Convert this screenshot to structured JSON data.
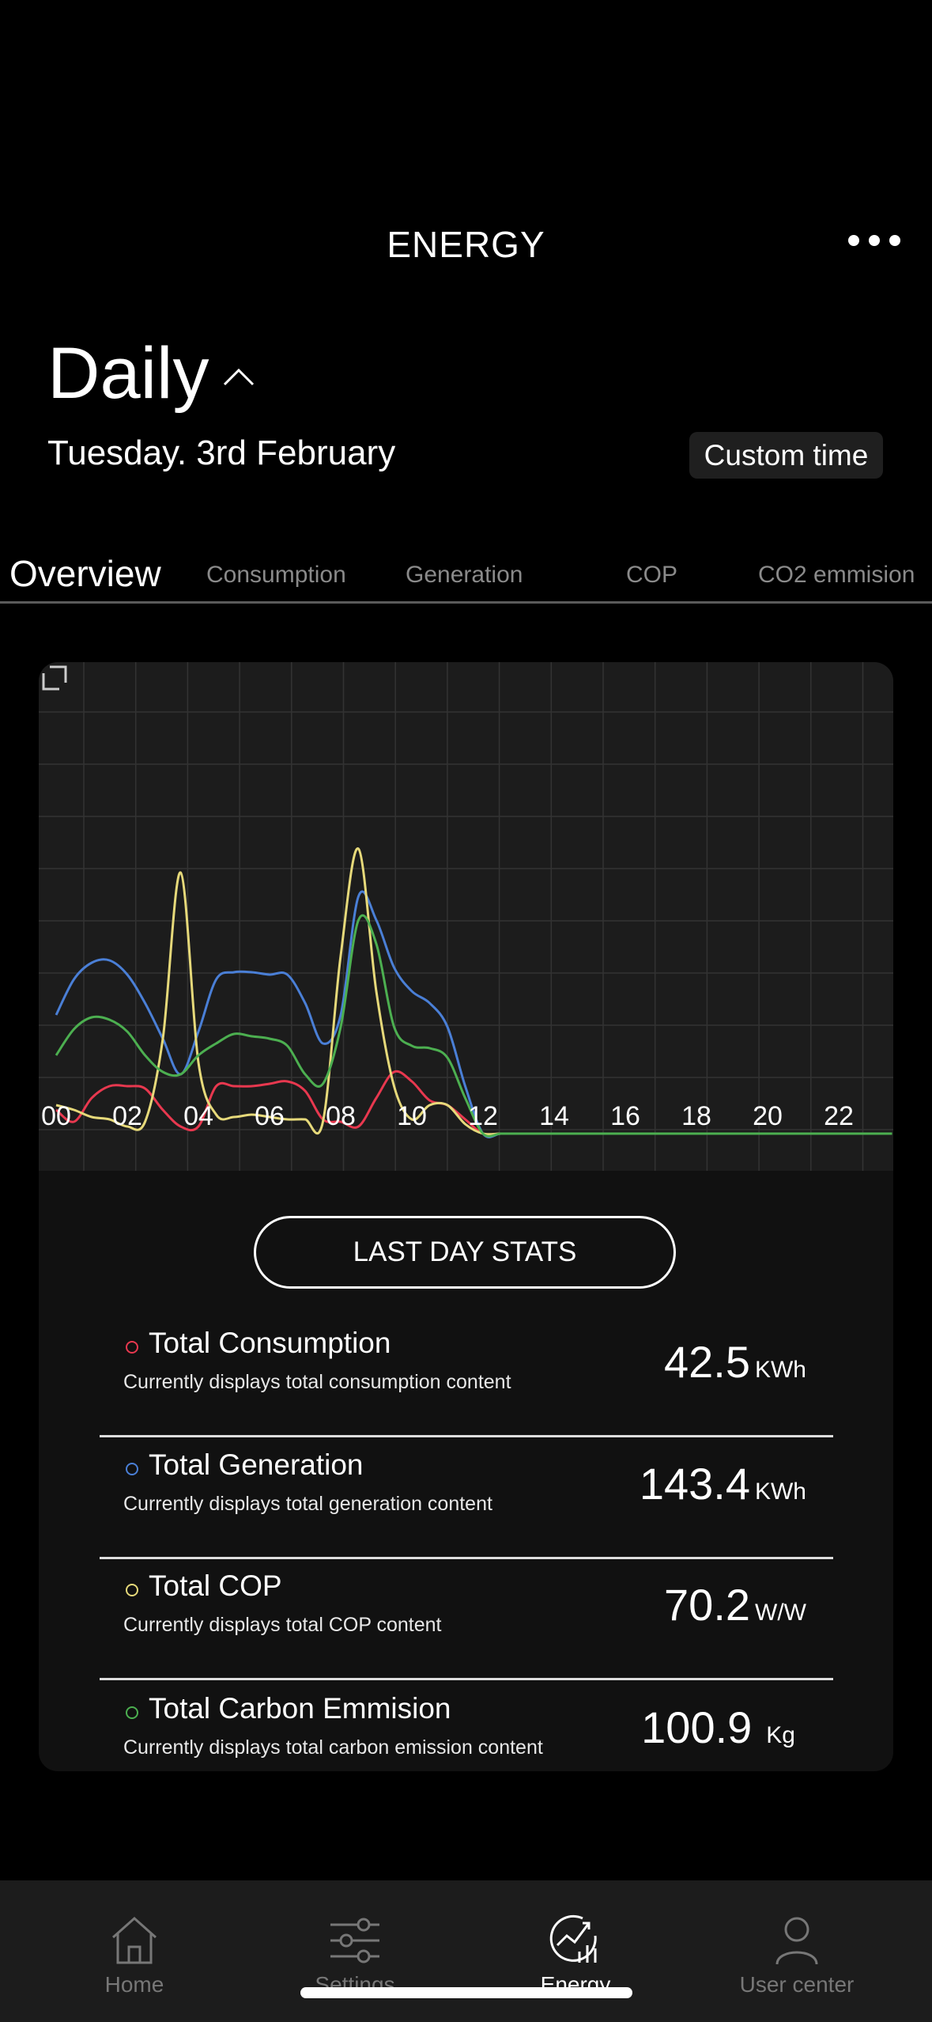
{
  "header": {
    "title": "ENERGY",
    "more_icon": "more-horizontal-icon"
  },
  "period": {
    "label": "Daily",
    "date": "Tuesday. 3rd February",
    "custom_time": "Custom time"
  },
  "tabs": [
    {
      "label": "Overview",
      "active": true
    },
    {
      "label": "Consumption",
      "active": false
    },
    {
      "label": "Generation",
      "active": false
    },
    {
      "label": "COP",
      "active": false
    },
    {
      "label": "CO2 emmision",
      "active": false
    }
  ],
  "chart_data": {
    "type": "line",
    "x_ticks": [
      "00",
      "02",
      "04",
      "06",
      "08",
      "10",
      "12",
      "14",
      "16",
      "18",
      "20",
      "22"
    ],
    "x": [
      0,
      0.5,
      1,
      1.5,
      2,
      2.5,
      3,
      3.5,
      4,
      4.5,
      5,
      5.5,
      6,
      6.5,
      7,
      7.5,
      8,
      8.5,
      9,
      9.5,
      10,
      10.5,
      11,
      11.5,
      12,
      12.5,
      13,
      14,
      16,
      18,
      20,
      22,
      23.5
    ],
    "grid": true,
    "series": [
      {
        "color": "#e8384f",
        "values": [
          1,
          0.5,
          1.5,
          2,
          2,
          1.9,
          1,
          0.3,
          0.3,
          2,
          2,
          2,
          2.1,
          2.2,
          1.8,
          0.6,
          0.5,
          0.3,
          1.5,
          2.6,
          2.2,
          1.4,
          1.2,
          0.6,
          0,
          0,
          0,
          0,
          0,
          0,
          0,
          0,
          0
        ]
      },
      {
        "color": "#4a7fd6",
        "values": [
          5,
          6.5,
          7.2,
          7.3,
          6.7,
          5.5,
          4,
          2.5,
          4.3,
          6.5,
          6.8,
          6.8,
          6.7,
          6.7,
          5.5,
          3.8,
          5,
          10,
          9,
          7,
          6,
          5.5,
          4.5,
          2,
          0,
          0,
          0,
          0,
          0,
          0,
          0,
          0,
          0
        ]
      },
      {
        "color": "#e6d97a",
        "values": [
          1.2,
          1,
          0.7,
          0.6,
          0.3,
          0.5,
          4,
          11,
          3,
          0.8,
          0.7,
          0.8,
          0.7,
          0.6,
          0.6,
          0.5,
          7.5,
          12,
          6,
          2,
          0.6,
          1.2,
          1.2,
          0.4,
          0,
          0,
          0,
          0,
          0,
          0,
          0,
          0,
          0
        ]
      },
      {
        "color": "#4caf50",
        "values": [
          3.3,
          4.4,
          4.9,
          4.8,
          4.3,
          3.3,
          2.6,
          2.5,
          3.3,
          3.8,
          4.2,
          4.1,
          4,
          3.7,
          2.5,
          2.1,
          4.5,
          9,
          8,
          4.5,
          3.7,
          3.6,
          3.2,
          1.5,
          0,
          0,
          0,
          0,
          0,
          0,
          0,
          0,
          0
        ]
      }
    ]
  },
  "stats_button": "LAST DAY STATS",
  "stats": [
    {
      "label": "Total Consumption",
      "desc": "Currently displays total consumption content",
      "value": "42.5",
      "unit": "KWh",
      "color": "#e8384f"
    },
    {
      "label": "Total Generation",
      "desc": "Currently displays total generation content",
      "value": "143.4",
      "unit": "KWh",
      "color": "#4a7fd6"
    },
    {
      "label": "Total COP",
      "desc": "Currently displays total COP content",
      "value": "70.2",
      "unit": "W/W",
      "color": "#e6d97a"
    },
    {
      "label": "Total Carbon Emmision",
      "desc": "Currently displays total carbon emission content",
      "value": "100.9",
      "unit": "Kg",
      "color": "#4caf50"
    }
  ],
  "nav": [
    {
      "label": "Home",
      "icon": "home-icon",
      "active": false
    },
    {
      "label": "Settings",
      "icon": "sliders-icon",
      "active": false
    },
    {
      "label": "Energy",
      "icon": "energy-chart-icon",
      "active": true
    },
    {
      "label": "User center",
      "icon": "user-icon",
      "active": false
    }
  ]
}
